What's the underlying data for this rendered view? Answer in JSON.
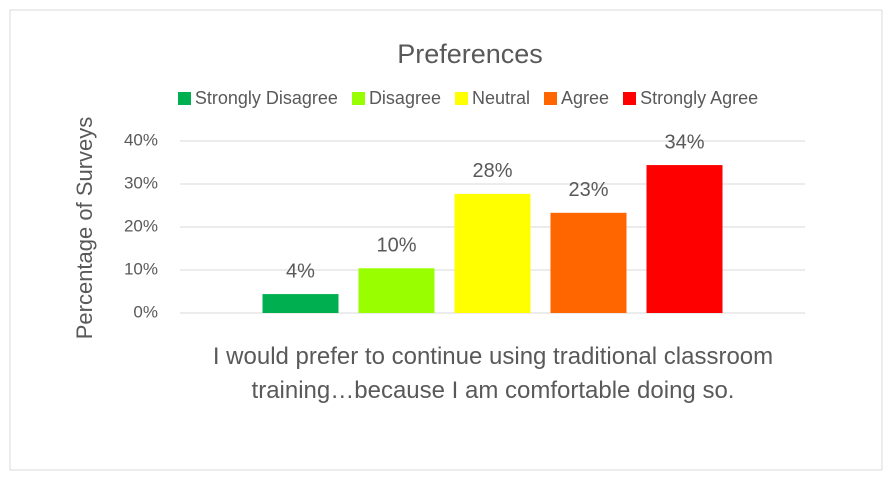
{
  "chart_data": {
    "type": "bar",
    "title": "Preferences",
    "categories": [
      "I would prefer to continue using traditional classroom training…because I am comfortable doing so."
    ],
    "ylabel": "Percentage of Surveys",
    "series": [
      {
        "name": "Strongly Disagree",
        "color": "#00b050",
        "values": [
          4.4
        ],
        "value_labels": [
          "4%"
        ]
      },
      {
        "name": "Disagree",
        "color": "#99ff00",
        "values": [
          10.4
        ],
        "value_labels": [
          "10%"
        ]
      },
      {
        "name": "Neutral",
        "color": "#ffff00",
        "values": [
          27.7
        ],
        "value_labels": [
          "28%"
        ]
      },
      {
        "name": "Agree",
        "color": "#ff6600",
        "values": [
          23.3
        ],
        "value_labels": [
          "23%"
        ]
      },
      {
        "name": "Strongly Agree",
        "color": "#ff0000",
        "values": [
          34.4
        ],
        "value_labels": [
          "34%"
        ]
      }
    ],
    "ylim": [
      0,
      40
    ],
    "yticks": [
      {
        "value": 0,
        "label": "0%"
      },
      {
        "value": 10,
        "label": "10%"
      },
      {
        "value": 20,
        "label": "20%"
      },
      {
        "value": 30,
        "label": "30%"
      },
      {
        "value": 40,
        "label": "40%"
      }
    ],
    "grid": true,
    "legend": "top"
  }
}
